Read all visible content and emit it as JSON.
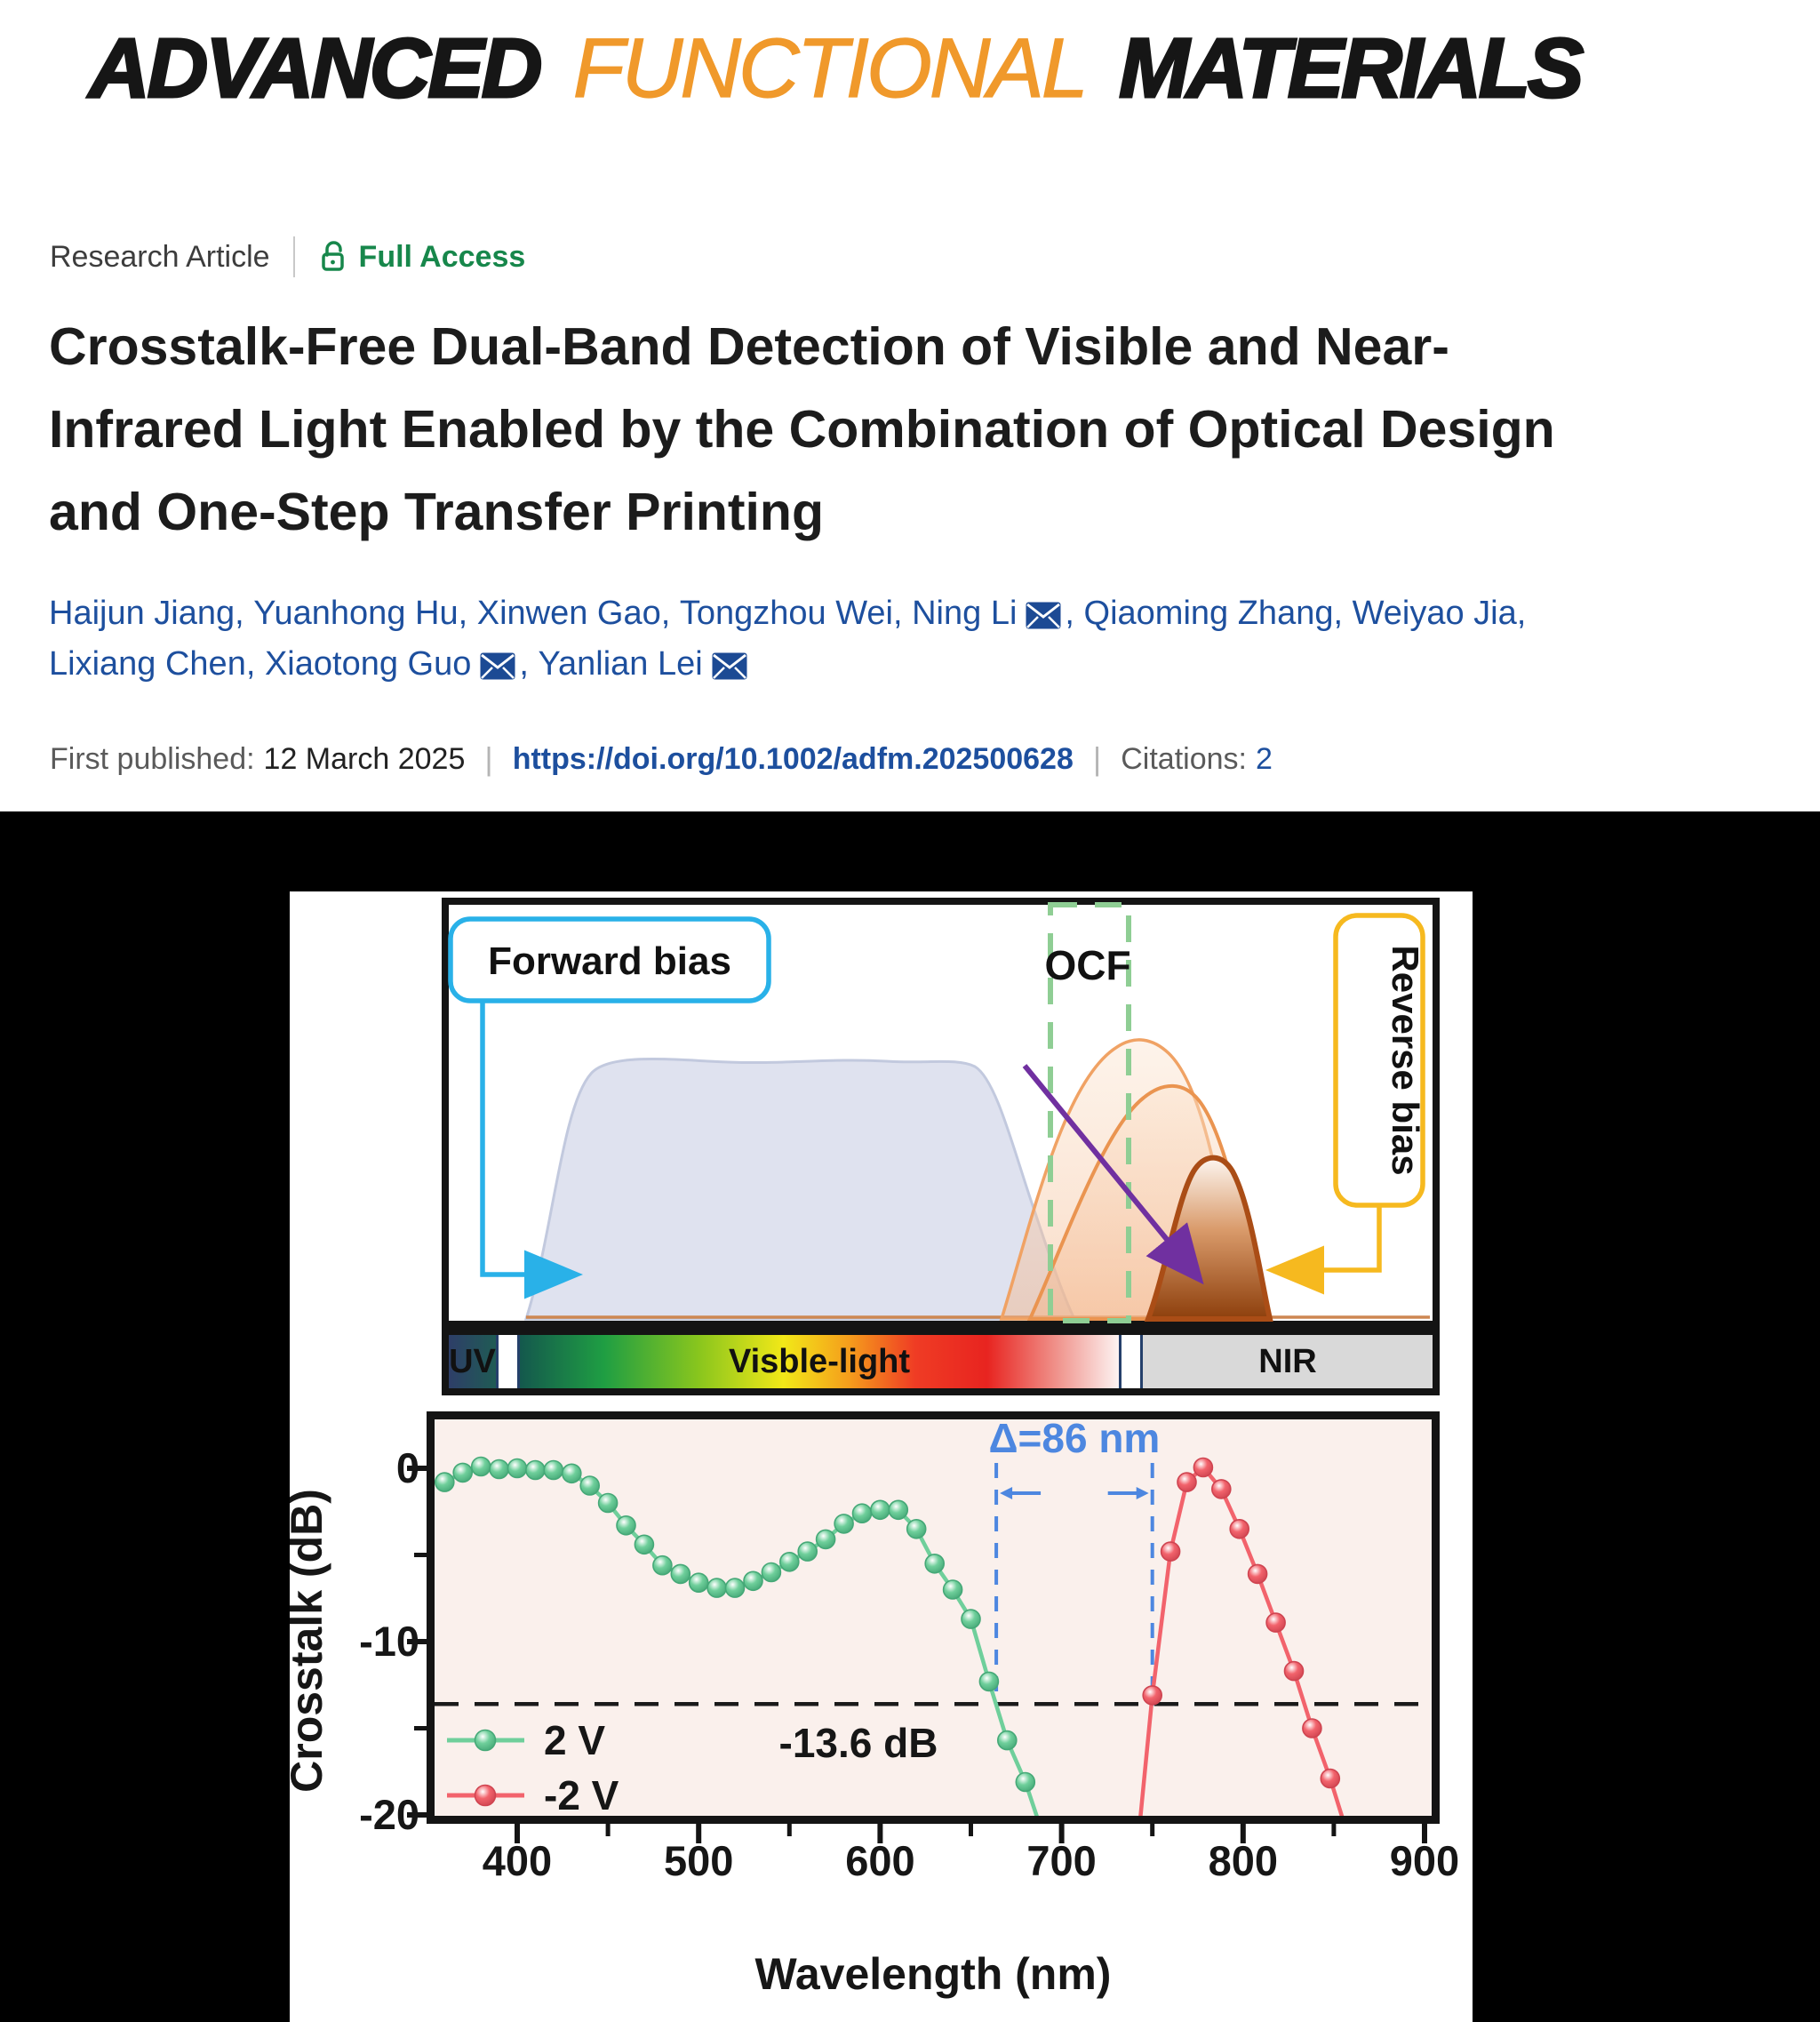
{
  "journal_logo": {
    "part1": "ADVANCED",
    "part2": "FUNCTIONAL",
    "part3": "MATERIALS",
    "accent_color": "#f0992b"
  },
  "meta": {
    "article_type": "Research Article",
    "access_label": "Full Access",
    "access_color": "#17874b"
  },
  "header": {
    "title_lines": [
      "Crosstalk-Free Dual-Band Detection of Visible and Near-",
      "Infrared Light Enabled by the Combination of Optical Design",
      "and One-Step Transfer Printing"
    ]
  },
  "author_lines": [
    [
      {
        "name": "Haijun Jiang",
        "email": false
      },
      {
        "name": "Yuanhong Hu",
        "email": false
      },
      {
        "name": "Xinwen Gao",
        "email": false
      },
      {
        "name": "Tongzhou Wei",
        "email": false
      },
      {
        "name": "Ning Li",
        "email": true
      },
      {
        "name": "Qiaoming Zhang",
        "email": false
      },
      {
        "name": "Weiyao Jia",
        "email": false
      }
    ],
    [
      {
        "name": "Lixiang Chen",
        "email": false
      },
      {
        "name": "Xiaotong Guo",
        "email": true
      },
      {
        "name": "Yanlian Lei",
        "email": true
      }
    ]
  ],
  "publication": {
    "label": "First published:",
    "date": "12 March 2025",
    "doi": "https://doi.org/10.1002/adfm.202500628",
    "citations_label": "Citations:",
    "citations_count": "2"
  },
  "figure": {
    "diagram": {
      "forward_bias_label": "Forward bias",
      "ocf_label": "OCF",
      "reverse_bias_label": "Reverse bias",
      "forward_color": "#29b1e8",
      "reverse_color": "#f6b91f",
      "ocf_box_color": "#8fce94",
      "arrow_color": "#7030a0"
    },
    "spectrum_bar": {
      "uv_label": "UV",
      "visible_label": "Visble-light",
      "nir_label": "NIR"
    }
  },
  "chart_data": {
    "type": "line",
    "xlabel": "Wavelength (nm)",
    "ylabel": "Crosstalk (dB)",
    "xlim": [
      350,
      906
    ],
    "ylim": [
      -20.4,
      3.2
    ],
    "x_ticks": [
      400,
      500,
      600,
      700,
      800,
      900
    ],
    "x_minor_ticks": [
      450,
      550,
      650,
      750,
      850
    ],
    "y_ticks": [
      0,
      -10,
      -20
    ],
    "y_minor_ticks": [
      -5,
      -15
    ],
    "background": "#faf0ec",
    "legend_position": "bottom-left",
    "grid": false,
    "series": [
      {
        "name": "2 V",
        "color": "#6fcf9b",
        "edge": "#45a877",
        "points": [
          [
            360,
            -0.8
          ],
          [
            370,
            -0.25
          ],
          [
            380,
            0.1
          ],
          [
            390,
            -0.05
          ],
          [
            400,
            0
          ],
          [
            410,
            -0.1
          ],
          [
            420,
            -0.1
          ],
          [
            430,
            -0.3
          ],
          [
            440,
            -1
          ],
          [
            450,
            -2
          ],
          [
            460,
            -3.3
          ],
          [
            470,
            -4.4
          ],
          [
            480,
            -5.6
          ],
          [
            490,
            -6.1
          ],
          [
            500,
            -6.6
          ],
          [
            510,
            -6.9
          ],
          [
            520,
            -6.9
          ],
          [
            530,
            -6.5
          ],
          [
            540,
            -6
          ],
          [
            550,
            -5.4
          ],
          [
            560,
            -4.8
          ],
          [
            570,
            -4.1
          ],
          [
            580,
            -3.2
          ],
          [
            590,
            -2.6
          ],
          [
            600,
            -2.4
          ],
          [
            610,
            -2.4
          ],
          [
            620,
            -3.5
          ],
          [
            630,
            -5.5
          ],
          [
            640,
            -7
          ],
          [
            650,
            -8.7
          ],
          [
            660,
            -12.3
          ],
          [
            670,
            -15.7
          ],
          [
            680,
            -18.1
          ],
          [
            688,
            -20.6
          ]
        ]
      },
      {
        "name": "-2 V",
        "color": "#f2636c",
        "edge": "#cf4450",
        "points": [
          [
            743,
            -20.6
          ],
          [
            750,
            -13.1
          ],
          [
            760,
            -4.8
          ],
          [
            769,
            -0.8
          ],
          [
            778,
            0.05
          ],
          [
            788,
            -1.2
          ],
          [
            798,
            -3.5
          ],
          [
            808,
            -6.1
          ],
          [
            818,
            -8.9
          ],
          [
            828,
            -11.7
          ],
          [
            838,
            -15
          ],
          [
            848,
            -17.9
          ],
          [
            856,
            -20.6
          ]
        ]
      }
    ],
    "threshold": {
      "value": -13.6,
      "label": "-13.6 dB"
    },
    "delta": {
      "label": "Δ=86 nm",
      "lines_nm": [
        664,
        750
      ],
      "color": "#4d87e0"
    }
  }
}
